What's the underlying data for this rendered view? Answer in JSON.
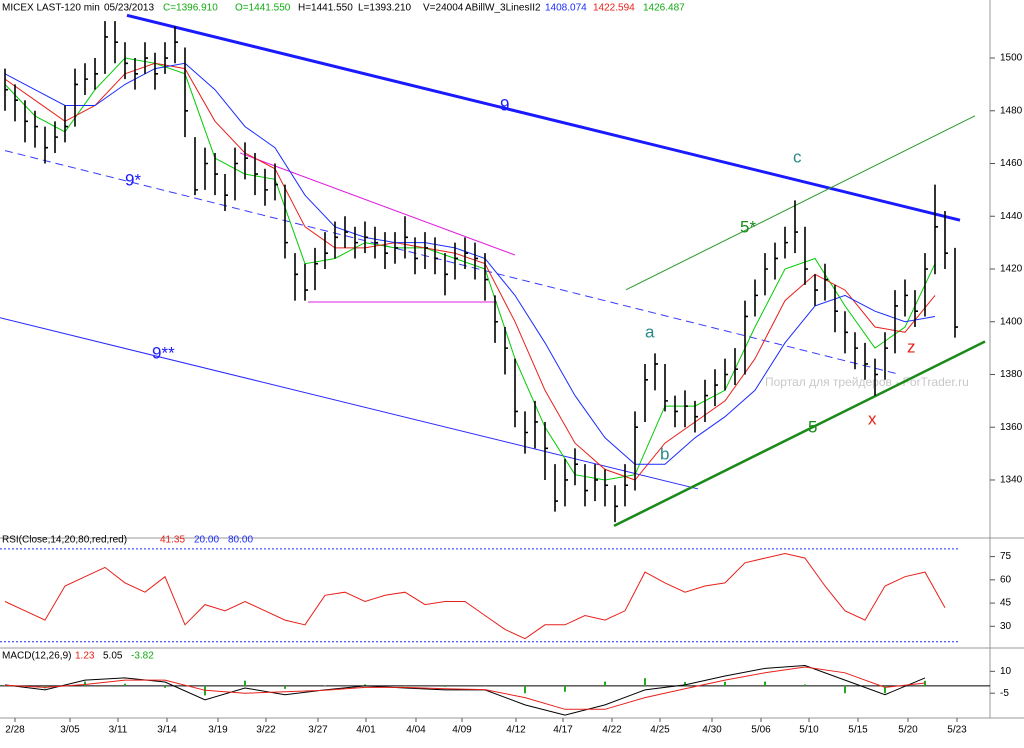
{
  "header": {
    "symbol": "MICEX LAST-120 min",
    "date": "05/23/2013",
    "close": "C=1396.910",
    "open": "O=1441.550",
    "high": "H=1441.550",
    "low": "L=1393.210",
    "volume": "V=24004",
    "indicator": "ABillW_3LinesII2",
    "indicator_values": [
      "1408.074",
      "1422.594",
      "1426.487"
    ]
  },
  "watermark": "Портал для трейдеров - ForTrader.ru",
  "chart_data": [
    {
      "type": "ohlc",
      "color": "#000000",
      "high": [
        1496,
        1490,
        1484,
        1480,
        1474,
        1476,
        1482,
        1496,
        1498,
        1500,
        1514,
        1514,
        1506,
        1500,
        1506,
        1502,
        1506,
        1512,
        1504,
        1470,
        1466,
        1464,
        1456,
        1466,
        1468,
        1464,
        1458,
        1460,
        1452,
        1426,
        1422,
        1428,
        1434,
        1438,
        1440,
        1436,
        1438,
        1436,
        1434,
        1434,
        1440,
        1432,
        1434,
        1432,
        1426,
        1430,
        1432,
        1430,
        1426,
        1410,
        1398,
        1386,
        1366,
        1370,
        1362,
        1346,
        1348,
        1352,
        1346,
        1346,
        1344,
        1338,
        1346,
        1366,
        1384,
        1388,
        1384,
        1372,
        1374,
        1370,
        1378,
        1382,
        1386,
        1390,
        1408,
        1416,
        1426,
        1430,
        1436,
        1446,
        1436,
        1418,
        1422,
        1414,
        1404,
        1396,
        1392,
        1386,
        1396,
        1412,
        1416,
        1412,
        1426,
        1452,
        1442,
        1428
      ],
      "low": [
        1480,
        1476,
        1468,
        1466,
        1460,
        1464,
        1468,
        1474,
        1486,
        1488,
        1494,
        1498,
        1492,
        1488,
        1494,
        1488,
        1494,
        1498,
        1470,
        1448,
        1450,
        1448,
        1442,
        1446,
        1454,
        1448,
        1444,
        1446,
        1424,
        1408,
        1408,
        1412,
        1420,
        1424,
        1428,
        1424,
        1426,
        1424,
        1420,
        1422,
        1424,
        1418,
        1420,
        1418,
        1410,
        1416,
        1420,
        1416,
        1408,
        1392,
        1380,
        1360,
        1350,
        1352,
        1340,
        1328,
        1330,
        1338,
        1330,
        1332,
        1330,
        1324,
        1330,
        1336,
        1362,
        1374,
        1366,
        1360,
        1360,
        1358,
        1362,
        1368,
        1374,
        1376,
        1380,
        1402,
        1410,
        1416,
        1424,
        1426,
        1414,
        1406,
        1408,
        1396,
        1388,
        1382,
        1378,
        1372,
        1378,
        1388,
        1402,
        1398,
        1402,
        1418,
        1420,
        1394
      ],
      "close": [
        1488,
        1484,
        1476,
        1474,
        1466,
        1470,
        1474,
        1490,
        1492,
        1494,
        1508,
        1506,
        1498,
        1494,
        1500,
        1494,
        1500,
        1506,
        1480,
        1450,
        1460,
        1456,
        1448,
        1460,
        1462,
        1456,
        1450,
        1452,
        1430,
        1418,
        1412,
        1422,
        1426,
        1432,
        1434,
        1430,
        1432,
        1430,
        1426,
        1428,
        1432,
        1424,
        1428,
        1424,
        1418,
        1424,
        1426,
        1424,
        1416,
        1400,
        1390,
        1366,
        1358,
        1362,
        1352,
        1332,
        1340,
        1346,
        1336,
        1340,
        1338,
        1330,
        1338,
        1360,
        1378,
        1384,
        1370,
        1366,
        1368,
        1364,
        1372,
        1376,
        1380,
        1382,
        1402,
        1410,
        1420,
        1424,
        1430,
        1434,
        1420,
        1412,
        1416,
        1404,
        1396,
        1390,
        1384,
        1380,
        1390,
        1406,
        1410,
        1404,
        1420,
        1436,
        1426,
        1398
      ],
      "ma_x": [
        0,
        3,
        6,
        9,
        12,
        15,
        18,
        21,
        24,
        27,
        30,
        33,
        36,
        39,
        42,
        45,
        48,
        51,
        54,
        57,
        60,
        63,
        66,
        69,
        72,
        75,
        78,
        81,
        84,
        87,
        90,
        93
      ],
      "series": [
        {
          "color": "#00cc00",
          "values": [
            1490,
            1478,
            1472,
            1488,
            1500,
            1498,
            1494,
            1462,
            1456,
            1454,
            1422,
            1424,
            1430,
            1428,
            1428,
            1424,
            1420,
            1386,
            1360,
            1342,
            1340,
            1342,
            1368,
            1368,
            1374,
            1398,
            1420,
            1424,
            1406,
            1390,
            1398,
            1422
          ]
        },
        {
          "color": "#e8201a",
          "values": [
            1492,
            1484,
            1476,
            1482,
            1494,
            1498,
            1496,
            1476,
            1464,
            1458,
            1436,
            1428,
            1428,
            1430,
            1428,
            1426,
            1422,
            1400,
            1374,
            1354,
            1344,
            1340,
            1354,
            1362,
            1370,
            1386,
            1408,
            1418,
            1412,
            1398,
            1396,
            1410
          ]
        },
        {
          "color": "#1a2cff",
          "values": [
            1494,
            1488,
            1482,
            1482,
            1490,
            1496,
            1498,
            1488,
            1474,
            1466,
            1448,
            1436,
            1432,
            1430,
            1430,
            1428,
            1424,
            1410,
            1392,
            1372,
            1356,
            1346,
            1346,
            1356,
            1364,
            1374,
            1392,
            1406,
            1410,
            1404,
            1400,
            1402
          ]
        }
      ],
      "trendlines": [
        {
          "color": "#1a1aff",
          "width": 3,
          "dash": false,
          "from": [
            12.2,
            1516.2
          ],
          "to": [
            95.5,
            1438.5
          ]
        },
        {
          "color": "#3a3aff",
          "width": 1,
          "dash": true,
          "from": [
            0,
            1464.9
          ],
          "to": [
            89.5,
            1380
          ]
        },
        {
          "color": "#2a2aff",
          "width": 1,
          "dash": false,
          "from": [
            -0.5,
            1401.5
          ],
          "to": [
            69.3,
            1336.6
          ]
        },
        {
          "color": "#1a8a1a",
          "width": 2.5,
          "dash": false,
          "from": [
            60.9,
            1322.6
          ],
          "to": [
            98,
            1392.5
          ]
        },
        {
          "color": "#2a9a2a",
          "width": 1,
          "dash": false,
          "from": [
            62.1,
            1412.1
          ],
          "to": [
            97,
            1478.1
          ]
        },
        {
          "color": "#e020e0",
          "width": 1,
          "dash": false,
          "from": [
            23.5,
            1464
          ],
          "to": [
            51,
            1425.3
          ]
        },
        {
          "color": "#e020e0",
          "width": 1,
          "dash": false,
          "from": [
            30.3,
            1407.5
          ],
          "to": [
            49.2,
            1407.5
          ]
        }
      ],
      "annotations": [
        "9",
        "9*",
        "9**",
        "5",
        "5*",
        "c",
        "a",
        "b",
        "x",
        "z"
      ],
      "xlim": [
        -0.5,
        98.5
      ],
      "ylim": [
        1318,
        1522
      ],
      "yticks": [
        1340,
        1360,
        1380,
        1400,
        1420,
        1440,
        1460,
        1480,
        1500
      ],
      "xticks": [
        {
          "value": 1,
          "label": "2/28"
        },
        {
          "value": 6.5,
          "label": "3/05"
        },
        {
          "value": 11.3,
          "label": "3/11"
        },
        {
          "value": 16.2,
          "label": "3/14"
        },
        {
          "value": 21.3,
          "label": "3/19"
        },
        {
          "value": 26.1,
          "label": "3/22"
        },
        {
          "value": 31.3,
          "label": "3/27"
        },
        {
          "value": 36.1,
          "label": "4/01"
        },
        {
          "value": 41.1,
          "label": "4/04"
        },
        {
          "value": 45.7,
          "label": "4/09"
        },
        {
          "value": 51.1,
          "label": "4/12"
        },
        {
          "value": 55.8,
          "label": "4/17"
        },
        {
          "value": 60.7,
          "label": "4/22"
        },
        {
          "value": 65.5,
          "label": "4/25"
        },
        {
          "value": 70.7,
          "label": "4/30"
        },
        {
          "value": 75.6,
          "label": "5/06"
        },
        {
          "value": 80.4,
          "label": "5/10"
        },
        {
          "value": 85.3,
          "label": "5/15"
        },
        {
          "value": 90.3,
          "label": "5/20"
        },
        {
          "value": 95.2,
          "label": "5/23"
        }
      ]
    },
    {
      "type": "line",
      "title": "RSI(Close,14,20,80,red,red)",
      "title_values": [
        "41.35",
        "20.00",
        "80.00"
      ],
      "color": "#e8201a",
      "level_color": "#1a2cff",
      "x": [
        0,
        2,
        4,
        6,
        8,
        10,
        12,
        14,
        16,
        18,
        20,
        22,
        24,
        26,
        28,
        30,
        32,
        34,
        36,
        38,
        40,
        42,
        44,
        46,
        48,
        50,
        52,
        54,
        56,
        58,
        60,
        62,
        64,
        66,
        68,
        70,
        72,
        74,
        76,
        78,
        80,
        82,
        84,
        86,
        88,
        90,
        92,
        94
      ],
      "values": [
        46,
        40,
        34,
        56,
        62,
        68,
        58,
        52,
        62,
        31,
        44,
        40,
        46,
        40,
        34,
        31,
        50,
        52,
        46,
        50,
        52,
        44,
        46,
        46,
        37,
        28,
        22,
        31,
        31,
        37,
        34,
        40,
        65,
        58,
        52,
        56,
        58,
        71,
        74,
        77,
        74,
        56,
        40,
        34,
        56,
        62,
        65,
        42
      ],
      "levels": [
        20,
        80
      ],
      "xlim": [
        -0.5,
        98.5
      ],
      "ylim": [
        16,
        87
      ],
      "yticks": [
        30,
        45,
        60,
        75
      ]
    },
    {
      "type": "macd",
      "title": "MACD(12,26,9)",
      "title_values": [
        "1.23",
        "5.05",
        "-3.82"
      ],
      "x": [
        0,
        4,
        8,
        12,
        16,
        20,
        24,
        28,
        32,
        36,
        40,
        44,
        48,
        52,
        56,
        60,
        64,
        68,
        72,
        76,
        80,
        84,
        88,
        92
      ],
      "series": [
        {
          "color": "#000000",
          "values": [
            0.7,
            -2.7,
            4,
            5.5,
            2.7,
            -9.5,
            -1.4,
            -6,
            -2.7,
            0,
            -1.4,
            -2.7,
            -2.7,
            -13,
            -20,
            -13,
            -2.7,
            0.7,
            6.8,
            12,
            14,
            4,
            -6,
            5.5
          ]
        },
        {
          "color": "#e8201a",
          "values": [
            0.5,
            -1,
            1,
            4,
            4,
            -3,
            -5,
            -4,
            -3,
            -1,
            -1,
            -2,
            -2.5,
            -8,
            -16,
            -16,
            -8,
            -2,
            4,
            9,
            13,
            9,
            -1,
            2
          ]
        }
      ],
      "histogram": {
        "color": "#22aa22",
        "values": [
          0.2,
          -1.7,
          3,
          1.5,
          -1.3,
          -6.5,
          3.6,
          -2,
          0.3,
          1,
          -0.4,
          -0.7,
          -0.2,
          -5,
          -4,
          3,
          5.3,
          2.7,
          2.8,
          3,
          1,
          -5,
          -5,
          3.5
        ]
      },
      "xlim": [
        -0.5,
        98.5
      ],
      "ylim": [
        -22,
        26
      ],
      "yticks": [
        -5,
        10
      ]
    }
  ]
}
